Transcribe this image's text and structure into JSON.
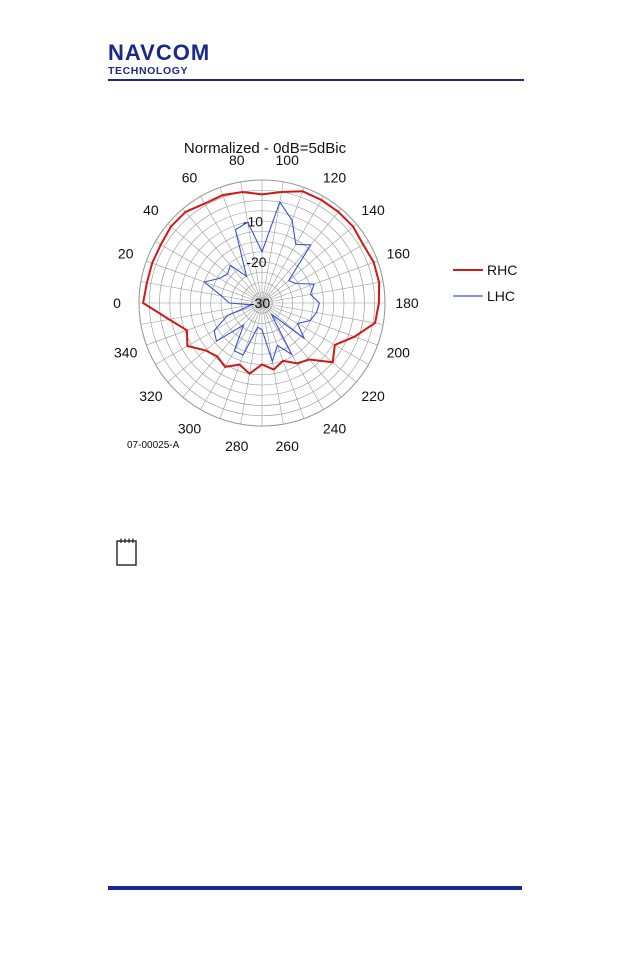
{
  "header": {
    "logo_main": "NAVCOM",
    "logo_sub": "TECHNOLOGY",
    "brand_color": "#1b2a86"
  },
  "figure": {
    "id_label": "07-00025-A",
    "note_icon": "note-icon"
  },
  "chart_data": {
    "type": "polar",
    "title": "Normalized - 0dB=5dBic",
    "radial_ticks": [
      "-10",
      "-20",
      "-30"
    ],
    "radial_range": [
      -30,
      0
    ],
    "angle_ticks": [
      "0",
      "20",
      "40",
      "60",
      "80",
      "100",
      "120",
      "140",
      "160",
      "180",
      "200",
      "220",
      "240",
      "260",
      "280",
      "300",
      "320",
      "340"
    ],
    "angles": [
      0,
      10,
      20,
      30,
      40,
      50,
      60,
      70,
      80,
      90,
      100,
      110,
      120,
      130,
      140,
      150,
      160,
      170,
      180,
      190,
      200,
      210,
      220,
      230,
      240,
      250,
      260,
      270,
      280,
      290,
      300,
      310,
      320,
      330,
      340,
      350
    ],
    "series": [
      {
        "name": "RHC",
        "color": "#d01818",
        "values": [
          -1.0,
          -1.5,
          -1.5,
          -1.5,
          -1.0,
          -1.0,
          -2.0,
          -2.0,
          -2.5,
          -3.5,
          -2.5,
          -1.0,
          -1.0,
          -1.0,
          -1.0,
          -1.5,
          -1.0,
          -1.0,
          -1.5,
          -2.0,
          -6.0,
          -9.5,
          -7.5,
          -12.0,
          -13.0,
          -15.0,
          -13.5,
          -15.0,
          -12.5,
          -14.0,
          -12.0,
          -13.0,
          -12.0,
          -9.0,
          -10.5,
          -7.0
        ]
      },
      {
        "name": "LHC",
        "color": "#3a50d6",
        "values": [
          -22.0,
          -20.0,
          -15.0,
          -18.0,
          -19.0,
          -18.0,
          -22.5,
          -11.0,
          -10.0,
          -17.5,
          -5.0,
          -8.5,
          -13.5,
          -11.5,
          -21.5,
          -20.5,
          -16.5,
          -18.0,
          -16.0,
          -16.5,
          -17.5,
          -20.0,
          -16.5,
          -26.5,
          -15.5,
          -19.0,
          -15.5,
          -23.5,
          -24.0,
          -16.5,
          -16.5,
          -23.0,
          -15.5,
          -16.5,
          -21.0,
          -27.5
        ]
      }
    ],
    "legend_position": "right",
    "grid": true
  }
}
